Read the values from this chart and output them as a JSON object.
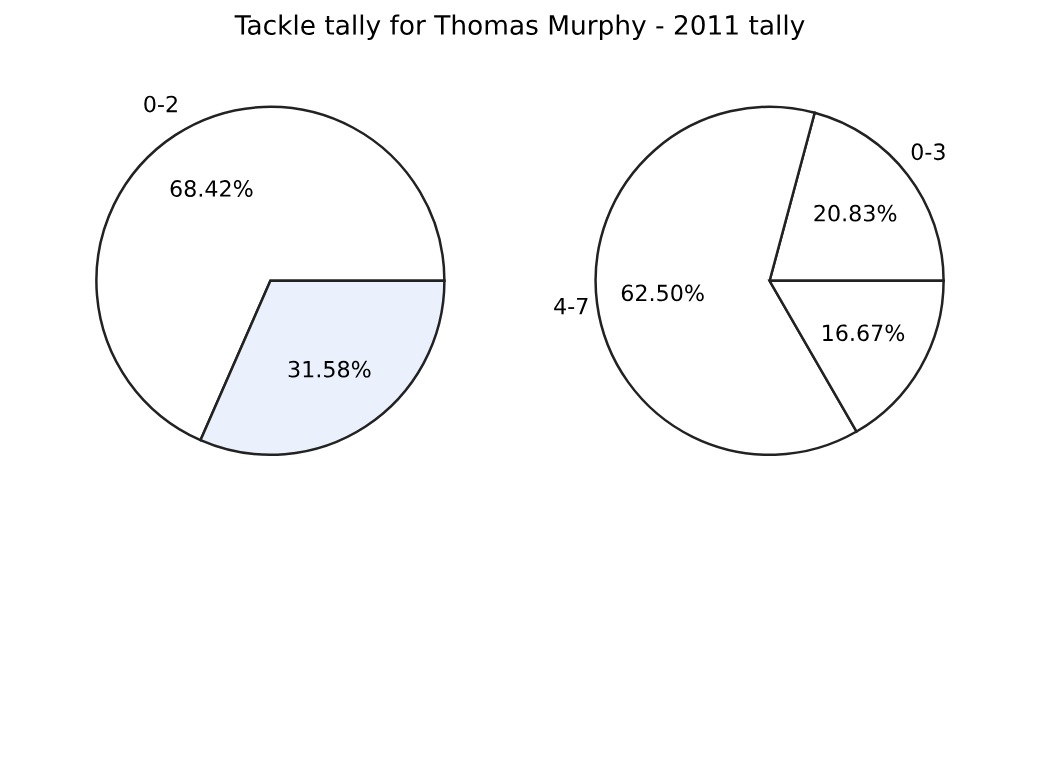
{
  "chart_data": [
    {
      "type": "pie",
      "title": "Tackle tally for Thomas Murphy - 2011 tally",
      "categories": [
        "0-2",
        null
      ],
      "values": [
        68.42,
        31.58
      ],
      "value_labels": [
        "68.42%",
        "31.58%"
      ],
      "colors": [
        "#ffffff",
        "#ebf1fc"
      ]
    },
    {
      "type": "pie",
      "categories": [
        "0-3",
        "4-7",
        null
      ],
      "values": [
        20.83,
        62.5,
        16.67
      ],
      "value_labels": [
        "20.83%",
        "62.50%",
        "16.67%"
      ],
      "colors": [
        "#ffffff",
        "#ffffff",
        "#ffffff"
      ]
    }
  ]
}
